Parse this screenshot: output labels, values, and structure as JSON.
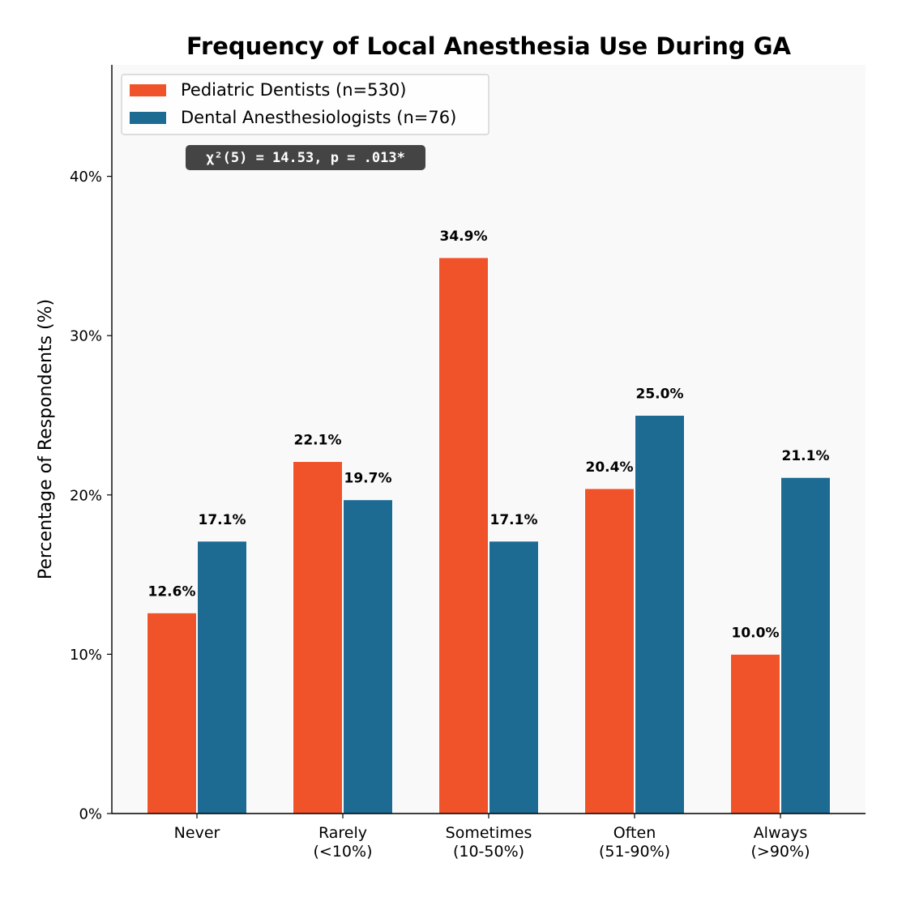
{
  "colors": {
    "series_1": "#F0532A",
    "series_2": "#1D6A93",
    "plot_background": "#F9F9F9",
    "annotation_background": "#444444"
  },
  "chart_data": {
    "type": "bar",
    "title": "Frequency of Local Anesthesia Use During GA",
    "xlabel": "",
    "ylabel": "Percentage of Respondents (%)",
    "categories": [
      [
        "Never"
      ],
      [
        "Rarely",
        "(<10%)"
      ],
      [
        "Sometimes",
        "(10-50%)"
      ],
      [
        "Often",
        "(51-90%)"
      ],
      [
        "Always",
        "(>90%)"
      ]
    ],
    "series": [
      {
        "name": "Pediatric Dentists (n=530)",
        "values": [
          12.6,
          22.1,
          34.9,
          20.4,
          10.0
        ],
        "labels": [
          "12.6%",
          "22.1%",
          "34.9%",
          "20.4%",
          "10.0%"
        ]
      },
      {
        "name": "Dental Anesthesiologists (n=76)",
        "values": [
          17.1,
          19.7,
          17.1,
          25.0,
          21.1
        ],
        "labels": [
          "17.1%",
          "19.7%",
          "17.1%",
          "25.0%",
          "21.1%"
        ]
      }
    ],
    "ylim": [
      0,
      47
    ],
    "yticks": [
      0,
      10,
      20,
      30,
      40
    ],
    "ytick_labels": [
      "0%",
      "10%",
      "20%",
      "30%",
      "40%"
    ],
    "grid": false,
    "legend_position": "top-left",
    "annotation": "χ²(5) = 14.53, p = .013*"
  }
}
